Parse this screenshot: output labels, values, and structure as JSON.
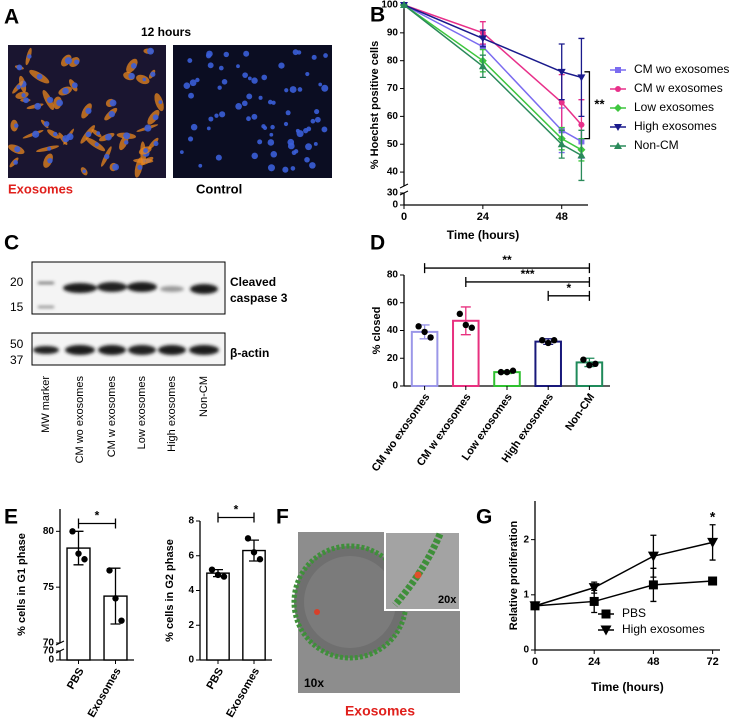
{
  "panel_labels": [
    "A",
    "B",
    "C",
    "D",
    "E",
    "F",
    "G"
  ],
  "panel_a": {
    "title": "12 hours",
    "captions": [
      "Exosomes",
      "Control"
    ]
  },
  "panel_c": {
    "mw_labels": [
      "20",
      "15",
      "50",
      "37"
    ],
    "upper_blot_label": [
      "Cleaved",
      "caspase 3"
    ],
    "lower_blot_label": "β-actin",
    "lanes": [
      "MW marker",
      "CM wo exosomes",
      "CM w exosomes",
      "Low exosomes",
      "High exosomes",
      "Non-CM"
    ]
  },
  "panel_f": {
    "magnifications": [
      "10x",
      "20x"
    ],
    "caption": "Exosomes"
  },
  "chart_data": [
    {
      "type": "line",
      "ylabel": "% Hoechst positive cells",
      "xlabel": "Time (hours)",
      "x": [
        0,
        24,
        48,
        54
      ],
      "xlim": [
        0,
        56
      ],
      "xticks": [
        0,
        24,
        48
      ],
      "ylim": [
        35,
        100
      ],
      "yticks": [
        40,
        50,
        60,
        70,
        80,
        90,
        100
      ],
      "ybreak": {
        "ylim": [
          0,
          30
        ],
        "yticks": [
          0,
          30
        ]
      },
      "legend": "right",
      "series": [
        {
          "name": "CM wo exosomes",
          "color": "#7b6cf0",
          "marker": "square",
          "values": [
            100,
            85,
            55,
            51
          ],
          "errors": [
            0,
            3,
            8,
            6
          ]
        },
        {
          "name": "CM w exosomes",
          "color": "#e8308a",
          "marker": "circle",
          "values": [
            100,
            90,
            65,
            57
          ],
          "errors": [
            0,
            4,
            10,
            9
          ]
        },
        {
          "name": "Low exosomes",
          "color": "#3ec63e",
          "marker": "diamond",
          "values": [
            100,
            80,
            52,
            48
          ],
          "errors": [
            0,
            4,
            4,
            4
          ]
        },
        {
          "name": "High exosomes",
          "color": "#1a1a8c",
          "marker": "triangle-down",
          "values": [
            100,
            88,
            76,
            74
          ],
          "errors": [
            0,
            3,
            10,
            14
          ]
        },
        {
          "name": "Non-CM",
          "color": "#2a8a5a",
          "marker": "triangle",
          "values": [
            100,
            78,
            50,
            46
          ],
          "errors": [
            0,
            4,
            5,
            9
          ]
        }
      ],
      "significance": [
        {
          "label": "**",
          "y": [
            52,
            76
          ]
        }
      ]
    },
    {
      "type": "bar",
      "ylabel": "% closed",
      "categories": [
        "CM wo exosomes",
        "CM w exosomes",
        "Low exosomes",
        "High exosomes",
        "Non-CM"
      ],
      "values": [
        39,
        47,
        10,
        32,
        17
      ],
      "errors": [
        5,
        10,
        1,
        2,
        3
      ],
      "points": [
        [
          43,
          39,
          35
        ],
        [
          52,
          44,
          42
        ],
        [
          10,
          10,
          11
        ],
        [
          33,
          31,
          33
        ],
        [
          19,
          15,
          16
        ]
      ],
      "colors": [
        "#9b97e8",
        "#e8307f",
        "#2fc02f",
        "#18187a",
        "#1f8a5a"
      ],
      "ylim": [
        0,
        80
      ],
      "yticks": [
        0,
        20,
        40,
        60,
        80
      ],
      "significance": [
        {
          "label": "**",
          "between": [
            "CM wo exosomes",
            "Non-CM"
          ],
          "y": 85
        },
        {
          "label": "***",
          "between": [
            "CM w exosomes",
            "Non-CM"
          ],
          "y": 75
        },
        {
          "label": "*",
          "between": [
            "High exosomes",
            "Non-CM"
          ],
          "y": 65
        }
      ]
    },
    {
      "type": "bar",
      "ylabel": "% cells in G1 phase",
      "categories": [
        "PBS",
        "Exosomes"
      ],
      "values": [
        78.5,
        74.2
      ],
      "errors": [
        1.5,
        2.5
      ],
      "points": [
        [
          80,
          78,
          77.5
        ],
        [
          76.5,
          74,
          72
        ]
      ],
      "color": "#000000",
      "ylim": [
        70,
        82
      ],
      "yticks": [
        70,
        75,
        80
      ],
      "ybreak": {
        "ylim": [
          0,
          70
        ],
        "yticks": [
          0,
          70
        ]
      },
      "significance": [
        {
          "label": "*",
          "between": [
            "PBS",
            "Exosomes"
          ],
          "y": 80.7
        }
      ]
    },
    {
      "type": "bar",
      "ylabel": "% cells in G2 phase",
      "categories": [
        "PBS",
        "Exosomes"
      ],
      "values": [
        5.0,
        6.3
      ],
      "errors": [
        0.2,
        0.6
      ],
      "points": [
        [
          5.2,
          4.9,
          4.8
        ],
        [
          7.0,
          6.2,
          5.8
        ]
      ],
      "color": "#000000",
      "ylim": [
        0,
        8
      ],
      "yticks": [
        0,
        2,
        4,
        6,
        8
      ],
      "significance": [
        {
          "label": "*",
          "between": [
            "PBS",
            "Exosomes"
          ],
          "y": 8.2
        }
      ]
    },
    {
      "type": "line",
      "ylabel": "Relative proliferation",
      "xlabel": "Time (hours)",
      "x": [
        0,
        24,
        48,
        72
      ],
      "xlim": [
        0,
        75
      ],
      "xticks": [
        0,
        24,
        48,
        72
      ],
      "ylim": [
        0,
        2.7
      ],
      "yticks": [
        0,
        1,
        2
      ],
      "legend": "lower right",
      "series": [
        {
          "name": "PBS",
          "color": "#000000",
          "marker": "square",
          "values": [
            0.8,
            0.88,
            1.18,
            1.25
          ],
          "errors": [
            0.05,
            0.2,
            0.3,
            0.02
          ]
        },
        {
          "name": "High exosomes",
          "color": "#000000",
          "marker": "triangle-down",
          "values": [
            0.8,
            1.13,
            1.7,
            1.95
          ],
          "errors": [
            0.05,
            0.1,
            0.38,
            0.32
          ]
        }
      ],
      "annotations": [
        {
          "label": "*",
          "x": 72,
          "y": 2.4
        }
      ]
    }
  ]
}
